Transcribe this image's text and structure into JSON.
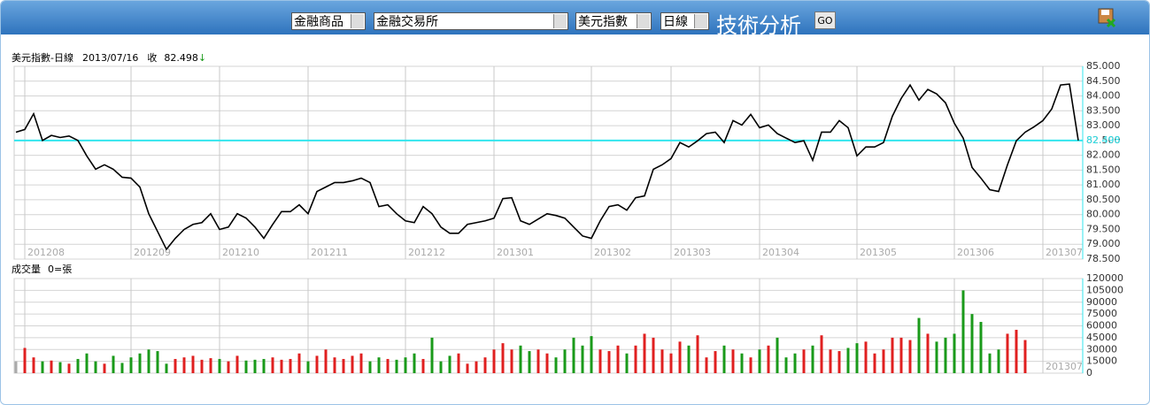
{
  "toolbar": {
    "selects": [
      "金融商品",
      "金融交易所",
      "美元指數",
      "日線"
    ],
    "title": "技術分析",
    "button": "GO"
  },
  "chart_data": [
    {
      "type": "line",
      "name": "美元指數-日線",
      "date": "2013/07/16",
      "close_label": "收",
      "close": 82.498,
      "arrow": "↓",
      "color": "#000000",
      "close_color": "#33e6ee",
      "categories": [
        null,
        "201208",
        null,
        null,
        null,
        null,
        null,
        null,
        null,
        null,
        null,
        null,
        null,
        "201209",
        null,
        null,
        null,
        null,
        null,
        null,
        null,
        null,
        null,
        "201210",
        null,
        null,
        null,
        null,
        null,
        null,
        null,
        null,
        null,
        "201211",
        null,
        null,
        null,
        null,
        null,
        null,
        null,
        null,
        null,
        null,
        "201212",
        null,
        null,
        null,
        null,
        null,
        null,
        null,
        null,
        null,
        "201301",
        null,
        null,
        null,
        null,
        null,
        null,
        null,
        null,
        null,
        null,
        "201302",
        null,
        null,
        null,
        null,
        null,
        null,
        null,
        null,
        "201303",
        null,
        null,
        null,
        null,
        null,
        null,
        null,
        null,
        null,
        "201304",
        null,
        null,
        null,
        null,
        null,
        null,
        null,
        null,
        null,
        null,
        "201305",
        null,
        null,
        null,
        null,
        null,
        null,
        null,
        null,
        null,
        null,
        "201306",
        null,
        null,
        null,
        null,
        null,
        null,
        null,
        null,
        null,
        "201307",
        null,
        null,
        null,
        null
      ],
      "values": [
        82.78,
        82.87,
        83.4,
        82.5,
        82.67,
        82.6,
        82.65,
        82.5,
        81.98,
        81.53,
        81.68,
        81.53,
        81.26,
        81.23,
        80.93,
        80.03,
        79.43,
        78.83,
        79.2,
        79.5,
        79.67,
        79.73,
        80.03,
        79.5,
        79.58,
        80.03,
        79.88,
        79.58,
        79.2,
        79.67,
        80.1,
        80.1,
        80.33,
        80.03,
        80.78,
        80.93,
        81.08,
        81.08,
        81.14,
        81.23,
        81.08,
        80.27,
        80.33,
        80.03,
        79.79,
        79.73,
        80.27,
        80.03,
        79.58,
        79.37,
        79.37,
        79.67,
        79.73,
        79.79,
        79.88,
        80.54,
        80.57,
        79.79,
        79.67,
        79.85,
        80.03,
        79.97,
        79.88,
        79.58,
        79.28,
        79.2,
        79.79,
        80.27,
        80.33,
        80.15,
        80.57,
        80.63,
        81.53,
        81.68,
        81.89,
        82.43,
        82.28,
        82.49,
        82.73,
        82.78,
        82.43,
        83.17,
        83.02,
        83.38,
        82.93,
        83.02,
        82.73,
        82.58,
        82.43,
        82.49,
        81.83,
        82.78,
        82.78,
        83.17,
        82.93,
        81.98,
        82.28,
        82.28,
        82.43,
        83.32,
        83.92,
        84.37,
        83.86,
        84.22,
        84.07,
        83.77,
        83.08,
        82.58,
        81.59,
        81.23,
        80.84,
        80.78,
        81.68,
        82.49,
        82.78,
        82.96,
        83.17,
        83.56,
        84.37,
        84.4,
        82.498
      ],
      "ylim": [
        78.5,
        85.0
      ],
      "yticks": [
        {
          "value": 78.5,
          "label": "78.500"
        },
        {
          "value": 79.0,
          "label": "79.000"
        },
        {
          "value": 79.5,
          "label": "79.500"
        },
        {
          "value": 80.0,
          "label": "80.000"
        },
        {
          "value": 80.5,
          "label": "80.500"
        },
        {
          "value": 81.0,
          "label": "81.000"
        },
        {
          "value": 81.5,
          "label": "81.500"
        },
        {
          "value": 82.0,
          "label": "82.000"
        },
        {
          "value": 82.5,
          "label": "82.500"
        },
        {
          "value": 83.0,
          "label": "83.000"
        },
        {
          "value": 83.5,
          "label": "83.500"
        },
        {
          "value": 84.0,
          "label": "84.000"
        },
        {
          "value": 84.5,
          "label": "84.500"
        },
        {
          "value": 85.0,
          "label": "85.000"
        }
      ],
      "grid": true
    },
    {
      "type": "bar",
      "name": "成交量",
      "unit": "0=張",
      "up_color": "#e02020",
      "down_color": "#1a9a1a",
      "values": [
        15000,
        32000,
        20000,
        15000,
        16000,
        14000,
        12000,
        18000,
        25000,
        15000,
        12000,
        22000,
        13000,
        20000,
        25000,
        30000,
        28000,
        12000,
        18000,
        20000,
        22000,
        17000,
        19000,
        18000,
        15000,
        22000,
        16000,
        17000,
        18000,
        20000,
        17000,
        18000,
        25000,
        15000,
        22000,
        30000,
        20000,
        18000,
        22000,
        25000,
        15000,
        20000,
        18000,
        17000,
        20000,
        25000,
        18000,
        45000,
        15000,
        22000,
        25000,
        12000,
        15000,
        20000,
        30000,
        38000,
        30000,
        35000,
        28000,
        30000,
        25000,
        20000,
        30000,
        45000,
        35000,
        47000,
        30000,
        28000,
        35000,
        25000,
        35000,
        50000,
        45000,
        30000,
        25000,
        40000,
        35000,
        48000,
        20000,
        28000,
        35000,
        30000,
        25000,
        20000,
        30000,
        35000,
        45000,
        20000,
        25000,
        30000,
        35000,
        48000,
        30000,
        28000,
        32000,
        38000,
        40000,
        25000,
        30000,
        45000,
        45000,
        42000,
        70000,
        50000,
        40000,
        45000,
        50000,
        105000,
        75000,
        65000,
        25000,
        30000,
        50000,
        55000,
        42000,
        null,
        null,
        null,
        null,
        null,
        null
      ],
      "ylim": [
        0,
        120000
      ],
      "yticks": [
        0,
        15000,
        30000,
        45000,
        60000,
        75000,
        90000,
        105000,
        120000
      ],
      "grid": true
    }
  ]
}
